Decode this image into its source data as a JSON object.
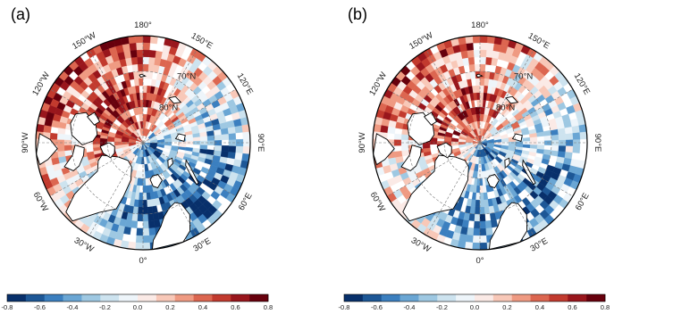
{
  "panels": [
    {
      "id": "a",
      "label": "(a)"
    },
    {
      "id": "b",
      "label": "(b)"
    }
  ],
  "map": {
    "projection": "north-polar-stereographic",
    "longitude_labels": [
      "180°",
      "150°E",
      "120°E",
      "90°E",
      "60°E",
      "30°E",
      "0°",
      "30°W",
      "60°W",
      "90°W",
      "120°W",
      "150°W"
    ],
    "latitude_labels": [
      "70°N",
      "80°N"
    ],
    "land_color": "#ffffff",
    "coastline_color": "#000000",
    "grid_style": "dashed"
  },
  "colorbar": {
    "tick_labels": [
      "-0.8",
      "-0.6",
      "-0.4",
      "-0.2",
      "0.0",
      "0.2",
      "0.4",
      "0.6",
      "0.8"
    ],
    "range": [
      -0.8,
      0.8
    ],
    "colors": [
      "#08306b",
      "#1d5796",
      "#3b7fbf",
      "#6aa6d4",
      "#9ec8e2",
      "#cde3ef",
      "#eef5fa",
      "#fbeae6",
      "#f8c8b8",
      "#ef9a82",
      "#dc6650",
      "#c23a2e",
      "#99161c",
      "#67000d"
    ]
  }
}
